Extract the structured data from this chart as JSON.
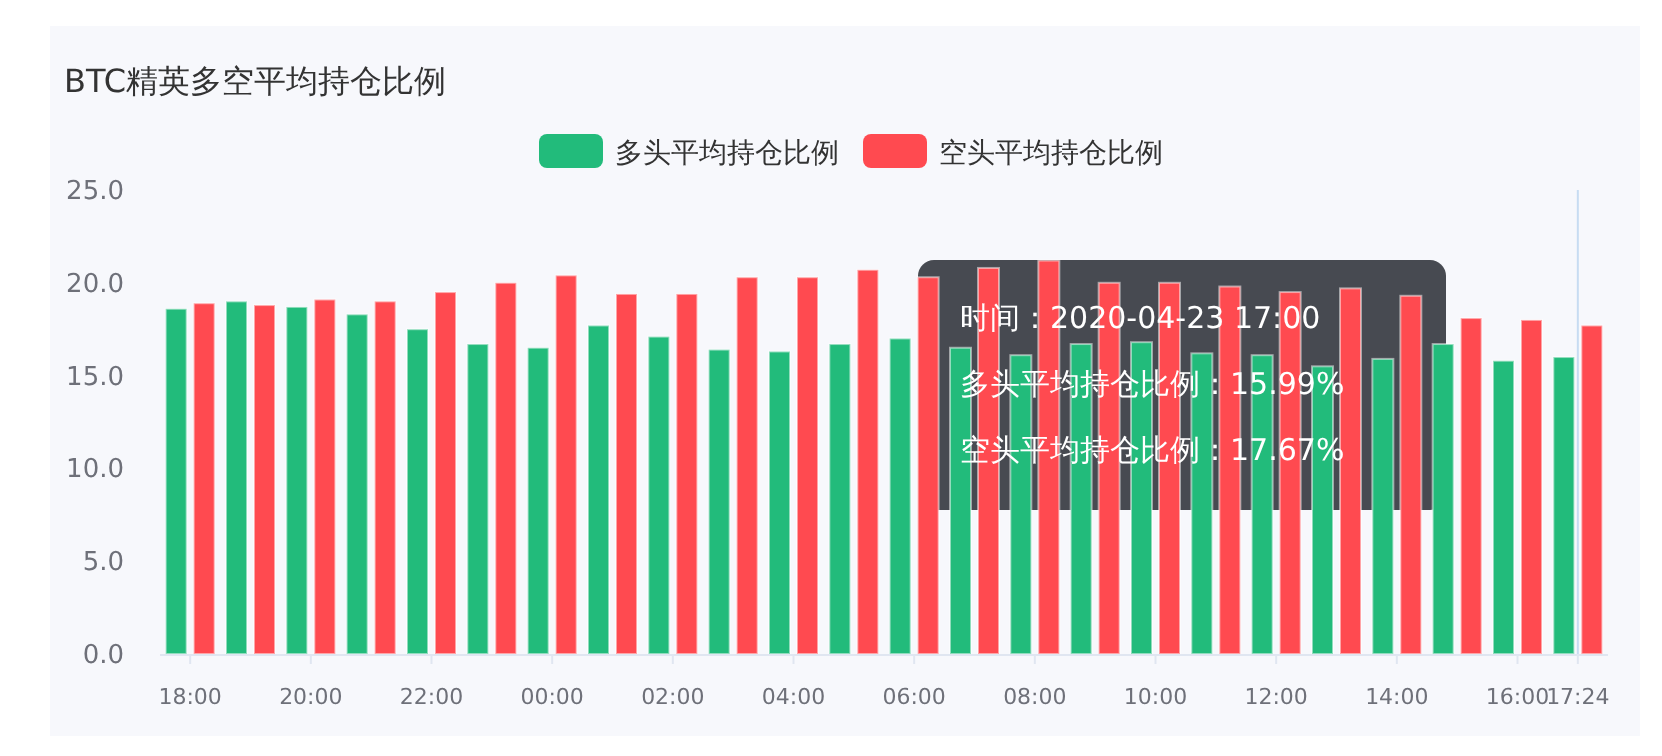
{
  "chart_data": {
    "type": "bar",
    "title": "BTC精英多空平均持仓比例",
    "categories": [
      "18:00",
      null,
      "20:00",
      null,
      "22:00",
      null,
      "00:00",
      null,
      "02:00",
      null,
      "04:00",
      null,
      "06:00",
      null,
      "08:00",
      null,
      "10:00",
      null,
      "12:00",
      null,
      "14:00",
      null,
      "16:00",
      "17:24"
    ],
    "series": [
      {
        "name": "多头平均持仓比例",
        "color": "#22bb7b",
        "values": [
          18.6,
          19.0,
          18.7,
          18.3,
          17.5,
          16.7,
          16.5,
          17.7,
          17.1,
          16.4,
          16.3,
          16.7,
          17.0,
          16.5,
          16.1,
          16.7,
          16.8,
          16.2,
          16.1,
          15.5,
          15.9,
          16.7,
          15.8,
          16.0
        ]
      },
      {
        "name": "空头平均持仓比例",
        "color": "#ff4a50",
        "values": [
          18.9,
          18.8,
          19.1,
          19.0,
          19.5,
          20.0,
          20.4,
          19.4,
          19.4,
          20.3,
          20.3,
          20.7,
          20.3,
          20.8,
          21.2,
          20.0,
          20.0,
          19.8,
          19.5,
          19.7,
          19.3,
          18.1,
          18.0,
          17.7
        ]
      }
    ],
    "ylim": [
      0,
      25
    ],
    "yticks": [
      {
        "value": 0,
        "label": "0.0"
      },
      {
        "value": 5,
        "label": "5.0"
      },
      {
        "value": 10,
        "label": "10.0"
      },
      {
        "value": 15,
        "label": "15.0"
      },
      {
        "value": 20,
        "label": "20.0"
      },
      {
        "value": 25,
        "label": "25.0"
      }
    ],
    "grid": false,
    "legend": "top",
    "ref_lines": [
      {
        "axis": "x",
        "value": "17:24",
        "color": "#c7dcf2"
      }
    ],
    "annotations": [
      "时间：2020-04-23 17:00",
      "多头平均持仓比例：15.99%",
      "空头平均持仓比例：17.67%"
    ]
  }
}
